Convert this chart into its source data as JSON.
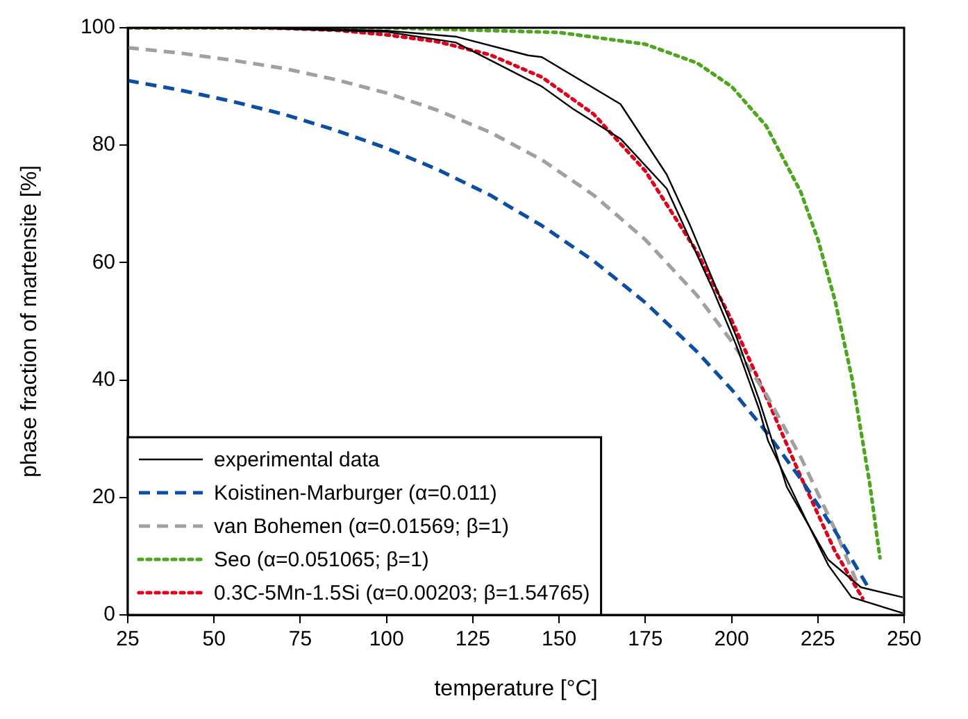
{
  "chart_data": {
    "type": "line",
    "xlabel": "temperature [°C]",
    "ylabel": "phase fraction of martensite [%]",
    "xlim": [
      25,
      250
    ],
    "xticks": [
      25,
      50,
      75,
      100,
      125,
      150,
      175,
      200,
      225,
      250
    ],
    "ylim": [
      0,
      100
    ],
    "yticks": [
      0,
      20,
      40,
      60,
      80,
      100
    ],
    "grid": false,
    "legend": "bottom left",
    "marker": "none",
    "series": [
      {
        "name": "experimental data",
        "color": "#000000",
        "line_style": "solid",
        "x": [
          25,
          60,
          100,
          120,
          141,
          145,
          167.8,
          181.2,
          188,
          194.6,
          201.3,
          208,
          216,
          228,
          237.5,
          249.6
        ],
        "values": [
          100,
          100,
          99.5,
          98.5,
          95.3,
          95,
          87,
          75,
          66.3,
          57,
          47.5,
          36.6,
          21.8,
          9.4,
          4.7,
          3
        ]
      },
      {
        "color": "#000000",
        "line_style": "solid",
        "x": [
          25,
          60,
          100,
          120,
          145,
          154,
          167.8,
          181.2,
          194.6,
          201.3,
          208,
          210.6,
          221.4,
          228,
          234.8,
          249.6
        ],
        "values": [
          100,
          100,
          99.3,
          97.5,
          90,
          86.2,
          81.1,
          72.6,
          55.4,
          46,
          35,
          29.6,
          16.4,
          8.5,
          3,
          0.3
        ]
      },
      {
        "name": "Koistinen-Marburger (α=0.011)",
        "color": "#0b4ea2",
        "line_style": "dashed",
        "x": [
          25,
          40,
          55,
          70,
          85,
          100,
          115,
          130,
          145,
          160,
          175,
          190,
          200,
          210,
          220,
          230,
          240
        ],
        "values": [
          91,
          89.4,
          87.5,
          85.3,
          82.6,
          79.5,
          75.8,
          71.5,
          66.3,
          60.3,
          53.2,
          44.8,
          38.4,
          31.2,
          23.2,
          14.3,
          4.3
        ]
      },
      {
        "name": "van Bohemen (α=0.01569; β=1)",
        "color": "#a0a0a0",
        "line_style": "dashed",
        "x": [
          25,
          40,
          55,
          70,
          85,
          100,
          115,
          130,
          145,
          160,
          175,
          190,
          200,
          210,
          220,
          230,
          237
        ],
        "values": [
          96.6,
          95.7,
          94.5,
          93.1,
          91.2,
          88.9,
          85.9,
          82.2,
          77.5,
          71.5,
          63.9,
          54.4,
          46.6,
          37.6,
          26.9,
          14.5,
          4.6
        ]
      },
      {
        "name": "Seo (α=0.051065; β=1)",
        "color": "#4ea51f",
        "line_style": "dotted",
        "x": [
          25,
          100,
          150,
          175,
          190,
          200,
          210,
          220,
          225,
          230,
          235,
          240,
          243
        ],
        "values": [
          100,
          100,
          99.2,
          97.2,
          94,
          90,
          83.3,
          72.1,
          64,
          53.5,
          40,
          22.5,
          9.7
        ]
      },
      {
        "name": "0.3C-5Mn-1.5Si (α=0.00203; β=1.54765)",
        "color": "#e0001a",
        "line_style": "dotted",
        "x": [
          25,
          55,
          70,
          85,
          100,
          115,
          130,
          145,
          160,
          175,
          190,
          200,
          210,
          220,
          230,
          238
        ],
        "values": [
          100,
          100,
          99.9,
          99.6,
          98.8,
          97.6,
          95.4,
          91.6,
          85.3,
          75.6,
          61.8,
          50.2,
          37.2,
          23.6,
          10.8,
          2.8
        ]
      }
    ]
  }
}
